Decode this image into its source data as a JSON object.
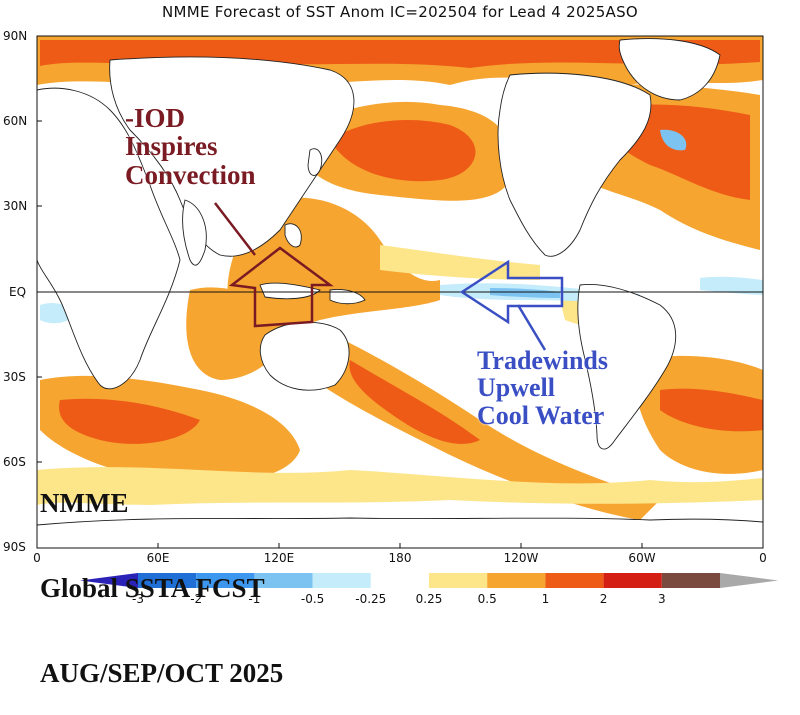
{
  "title": "NMME Forecast of SST Anom IC=202504 for Lead 4 2025ASO",
  "axes": {
    "y_ticks": [
      "90N",
      "60N",
      "30N",
      "EQ",
      "30S",
      "60S",
      "90S"
    ],
    "x_ticks": [
      "0",
      "60E",
      "120E",
      "180",
      "120W",
      "60W",
      "0"
    ],
    "lat_range": [
      -90,
      90
    ],
    "lon_range": [
      0,
      360
    ]
  },
  "annotations": {
    "iod": "-IOD\nInspires\nConvection",
    "tradewinds": "Tradewinds\nUpwell\nCool Water",
    "nmme_line1": "NMME",
    "nmme_line2": "Global SSTA FCST",
    "nmme_line3": "AUG/SEP/OCT 2025"
  },
  "colorbar": {
    "labels": [
      "-3",
      "-2",
      "-1",
      "-0.5",
      "-0.25",
      "0.25",
      "0.5",
      "1",
      "2",
      "3"
    ],
    "colors": [
      "#2b23b8",
      "#1f6fd6",
      "#3e97ef",
      "#7cc3f2",
      "#c4ecfa",
      "#ffffff",
      "#fde58a",
      "#f6a531",
      "#ee5b16",
      "#d41f14",
      "#7b4a3e",
      "#a9a9a9"
    ]
  },
  "colors": {
    "land": "#ffffff",
    "coast": "#222222",
    "iod_arrow": "#7a1a22",
    "trade_arrow": "#3b4fc4"
  }
}
